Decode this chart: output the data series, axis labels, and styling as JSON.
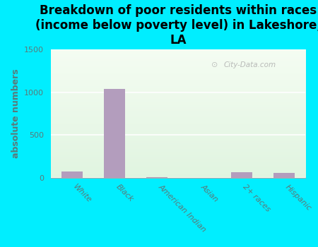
{
  "title": "Breakdown of poor residents within races\n(income below poverty level) in Lakeshore,\nLA",
  "categories": [
    "White",
    "Black",
    "American Indian",
    "Asian",
    "2+ races",
    "Hispanic"
  ],
  "values": [
    75,
    1035,
    10,
    0,
    70,
    60
  ],
  "bar_color": "#b39dbd",
  "ylabel": "absolute numbers",
  "ylim": [
    0,
    1500
  ],
  "yticks": [
    0,
    500,
    1000,
    1500
  ],
  "bg_outer": "#00eeff",
  "bg_plot_top_left": "#d8eed8",
  "bg_plot_top_right": "#f0f8f0",
  "bg_plot_bottom": "#e0f2e0",
  "watermark": "City-Data.com",
  "title_fontsize": 12,
  "ylabel_fontsize": 9,
  "tick_color": "#5a7a7a",
  "label_color": "#5a7a7a"
}
